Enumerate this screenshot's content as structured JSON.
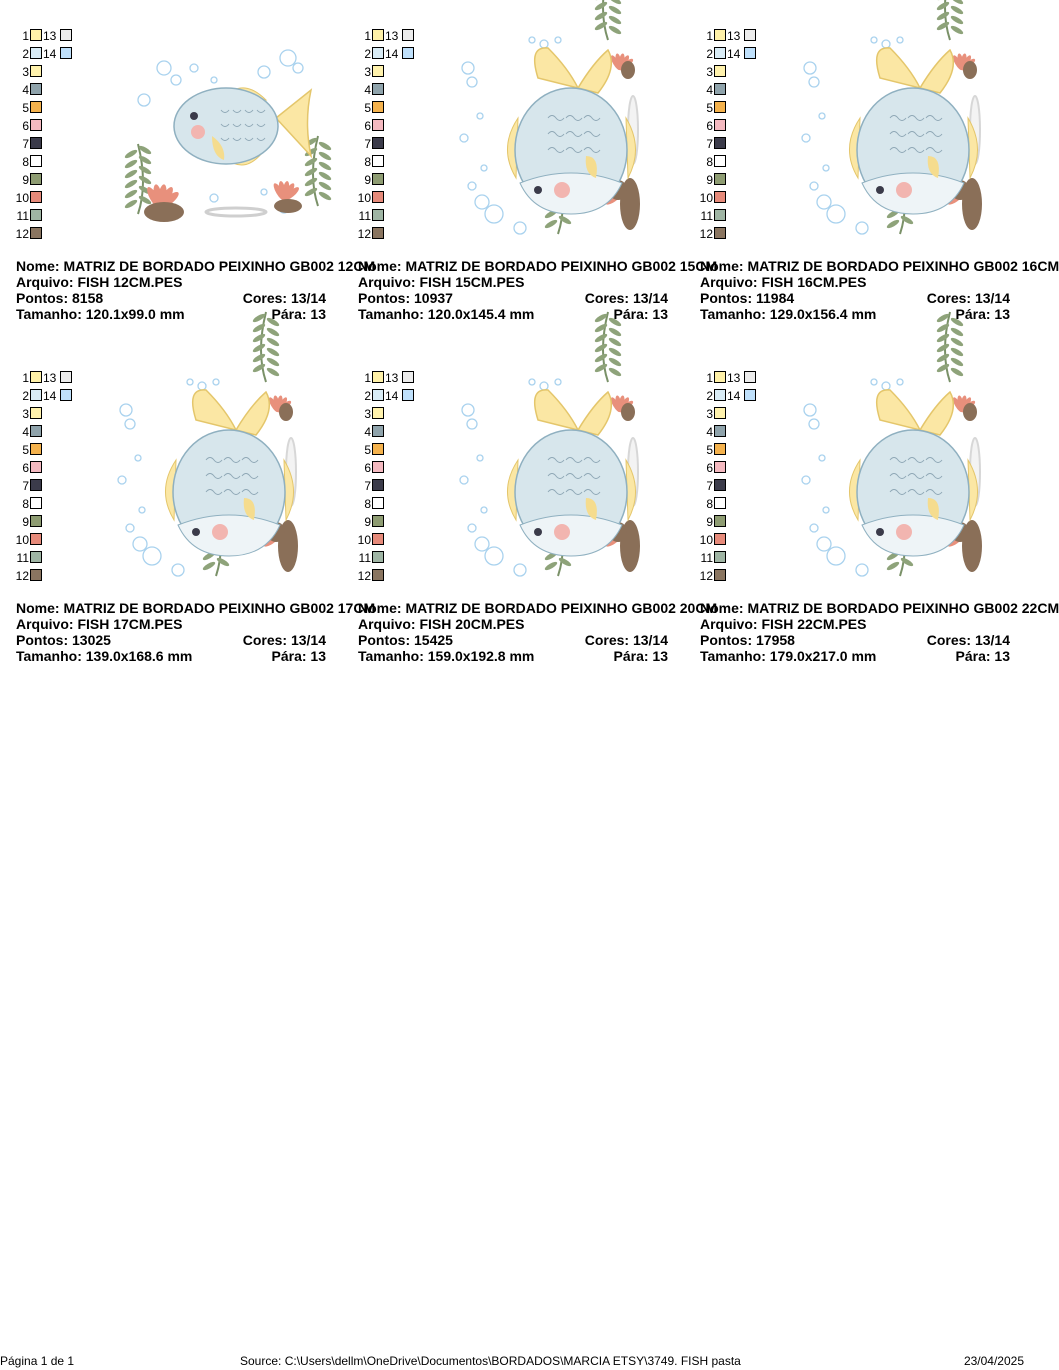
{
  "palette": {
    "rows": [
      {
        "n": "1",
        "color": "#fff1a8",
        "n2": "13",
        "color2": "#ececec"
      },
      {
        "n": "2",
        "color": "#d9ecf6",
        "n2": "14",
        "color2": "#bfe0fb"
      },
      {
        "n": "3",
        "color": "#fff2ad"
      },
      {
        "n": "4",
        "color": "#8fa3ab"
      },
      {
        "n": "5",
        "color": "#f4b24d"
      },
      {
        "n": "6",
        "color": "#f4b9c0"
      },
      {
        "n": "7",
        "color": "#3b3b4a"
      },
      {
        "n": "8",
        "color": "#ffffff"
      },
      {
        "n": "9",
        "color": "#8e9c72"
      },
      {
        "n": "10",
        "color": "#e68a7a"
      },
      {
        "n": "11",
        "color": "#9fb5a4"
      },
      {
        "n": "12",
        "color": "#8a7560"
      }
    ]
  },
  "designs": [
    {
      "nome": "Nome: MATRIZ DE BORDADO PEIXINHO GB002 12CM",
      "arquivo": "Arquivo: FISH 12CM.PES",
      "pontos": "Pontos: 8158",
      "cores": "Cores: 13/14",
      "tamanho": "Tamanho: 120.1x99.0 mm",
      "para": "Pára: 13",
      "orientation": "horizontal"
    },
    {
      "nome": "Nome: MATRIZ DE BORDADO PEIXINHO GB002 15CM",
      "arquivo": "Arquivo: FISH 15CM.PES",
      "pontos": "Pontos: 10937",
      "cores": "Cores: 13/14",
      "tamanho": "Tamanho: 120.0x145.4 mm",
      "para": "Pára: 13",
      "orientation": "vertical"
    },
    {
      "nome": "Nome: MATRIZ DE BORDADO PEIXINHO GB002 16CM",
      "arquivo": "Arquivo: FISH 16CM.PES",
      "pontos": "Pontos: 11984",
      "cores": "Cores: 13/14",
      "tamanho": "Tamanho: 129.0x156.4 mm",
      "para": "Pára: 13",
      "orientation": "vertical"
    },
    {
      "nome": "Nome: MATRIZ DE BORDADO PEIXINHO GB002 17CM",
      "arquivo": "Arquivo: FISH 17CM.PES",
      "pontos": "Pontos: 13025",
      "cores": "Cores: 13/14",
      "tamanho": "Tamanho: 139.0x168.6 mm",
      "para": "Pára: 13",
      "orientation": "vertical"
    },
    {
      "nome": "Nome: MATRIZ DE BORDADO PEIXINHO GB002 20CM",
      "arquivo": "Arquivo: FISH 20CM.PES",
      "pontos": "Pontos: 15425",
      "cores": "Cores: 13/14",
      "tamanho": "Tamanho: 159.0x192.8 mm",
      "para": "Pára: 13",
      "orientation": "vertical"
    },
    {
      "nome": "Nome: MATRIZ DE BORDADO PEIXINHO GB002 22CM",
      "arquivo": "Arquivo: FISH 22CM.PES",
      "pontos": "Pontos: 17958",
      "cores": "Cores: 13/14",
      "tamanho": "Tamanho: 179.0x217.0 mm",
      "para": "Pára: 13",
      "orientation": "vertical"
    }
  ],
  "footer": {
    "page": "Página 1 de 1",
    "source": "Source: C:\\Users\\dellm\\OneDrive\\Documentos\\BORDADOS\\MARCIA ETSY\\3749. FISH pasta",
    "date": "23/04/2025"
  }
}
